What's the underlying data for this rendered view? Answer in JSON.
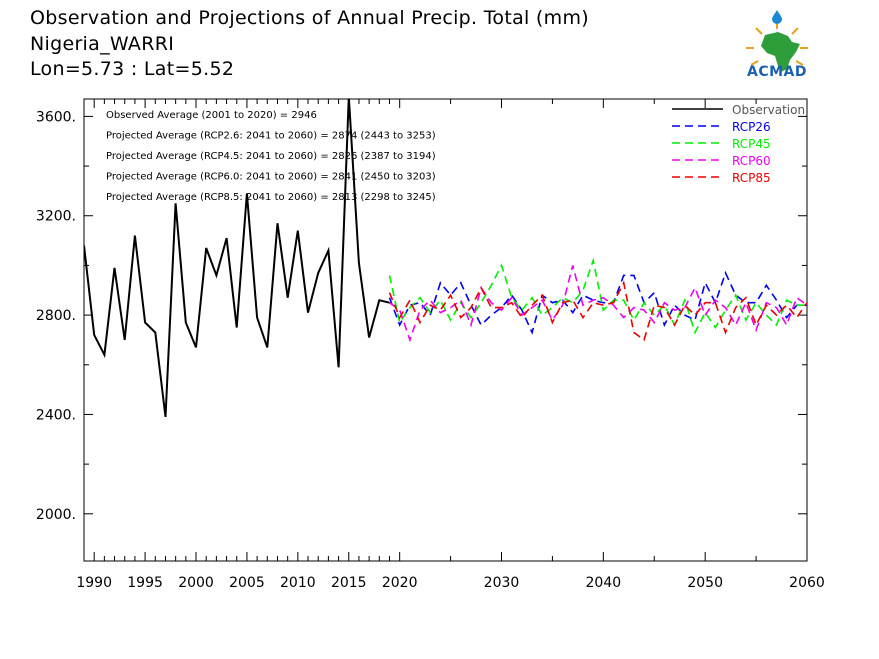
{
  "header": {
    "title": "Observation and Projections of Annual Precip. Total (mm)",
    "station": "Nigeria_WARRI",
    "coords": "Lon=5.73 : Lat=5.52"
  },
  "logo": {
    "text": "ACMAD"
  },
  "colors": {
    "observation": "#000000",
    "rcp26": "#0000ee",
    "rcp45": "#00ee00",
    "rcp60": "#ee00ee",
    "rcp85": "#ee0000"
  },
  "chart_data": {
    "type": "line",
    "xlim": [
      1989,
      2060
    ],
    "ylim": [
      1810,
      3670
    ],
    "x_ticks": [
      {
        "value": 1990,
        "label": "1990"
      },
      {
        "value": 1995,
        "label": "1995"
      },
      {
        "value": 2000,
        "label": "2000"
      },
      {
        "value": 2005,
        "label": "2005"
      },
      {
        "value": 2010,
        "label": "2010"
      },
      {
        "value": 2015,
        "label": "2015"
      },
      {
        "value": 2020,
        "label": "2020"
      },
      {
        "value": 2030,
        "label": "2030"
      },
      {
        "value": 2040,
        "label": "2040"
      },
      {
        "value": 2050,
        "label": "2050"
      },
      {
        "value": 2060,
        "label": "2060"
      }
    ],
    "y_ticks": [
      {
        "value": 2000,
        "label": "2000."
      },
      {
        "value": 2400,
        "label": "2400."
      },
      {
        "value": 2800,
        "label": "2800."
      },
      {
        "value": 3200,
        "label": "3200."
      },
      {
        "value": 3600,
        "label": "3600."
      }
    ],
    "annotations": [
      "Observed Average (2001 to 2020) = 2946",
      "Projected Average (RCP2.6: 2041 to 2060) = 2874 (2443 to 3253)",
      "Projected Average (RCP4.5: 2041 to 2060) = 2826 (2387 to 3194)",
      "Projected Average (RCP6.0: 2041 to 2060) = 2841 (2450 to 3203)",
      "Projected Average (RCP8.5: 2041 to 2060) = 2813 (2298 to 3245)"
    ],
    "legend_position": "top-right",
    "series": [
      {
        "name": "Observation",
        "key": "observation",
        "dash": "none",
        "x": [
          1989,
          1990,
          1991,
          1992,
          1993,
          1994,
          1995,
          1996,
          1997,
          1998,
          1999,
          2000,
          2001,
          2002,
          2003,
          2004,
          2005,
          2006,
          2007,
          2008,
          2009,
          2010,
          2011,
          2012,
          2013,
          2014,
          2015,
          2016,
          2017,
          2018,
          2019
        ],
        "y": [
          3080,
          2720,
          2640,
          2990,
          2700,
          3120,
          2770,
          2730,
          2390,
          3250,
          2770,
          2670,
          3070,
          2960,
          3110,
          2750,
          3290,
          2790,
          2670,
          3170,
          2870,
          3140,
          2810,
          2970,
          3060,
          2590,
          3680,
          3010,
          2710,
          2860,
          2850
        ]
      },
      {
        "name": "RCP26",
        "key": "rcp26",
        "dash": "8,5",
        "x": [
          2019,
          2020,
          2021,
          2022,
          2023,
          2024,
          2025,
          2026,
          2027,
          2028,
          2029,
          2030,
          2031,
          2032,
          2033,
          2034,
          2035,
          2036,
          2037,
          2038,
          2039,
          2040,
          2041,
          2042,
          2043,
          2044,
          2045,
          2046,
          2047,
          2048,
          2049,
          2050,
          2051,
          2052,
          2053,
          2054,
          2055,
          2056,
          2057,
          2058,
          2059,
          2060
        ],
        "y": [
          2870,
          2760,
          2840,
          2850,
          2800,
          2930,
          2880,
          2930,
          2840,
          2760,
          2800,
          2830,
          2880,
          2820,
          2730,
          2880,
          2850,
          2860,
          2810,
          2880,
          2860,
          2850,
          2850,
          2960,
          2960,
          2850,
          2890,
          2760,
          2840,
          2800,
          2780,
          2930,
          2850,
          2970,
          2880,
          2850,
          2850,
          2920,
          2860,
          2790,
          2840,
          2840
        ]
      },
      {
        "name": "RCP45",
        "key": "rcp45",
        "dash": "8,5",
        "x": [
          2019,
          2020,
          2021,
          2022,
          2023,
          2024,
          2025,
          2026,
          2027,
          2028,
          2029,
          2030,
          2031,
          2032,
          2033,
          2034,
          2035,
          2036,
          2037,
          2038,
          2039,
          2040,
          2041,
          2042,
          2043,
          2044,
          2045,
          2046,
          2047,
          2048,
          2049,
          2050,
          2051,
          2052,
          2053,
          2054,
          2055,
          2056,
          2057,
          2058,
          2059,
          2060
        ],
        "y": [
          2960,
          2770,
          2830,
          2870,
          2810,
          2860,
          2780,
          2850,
          2790,
          2850,
          2920,
          3000,
          2870,
          2820,
          2870,
          2800,
          2830,
          2870,
          2850,
          2900,
          3020,
          2820,
          2860,
          2860,
          2780,
          2850,
          2800,
          2840,
          2760,
          2860,
          2730,
          2810,
          2750,
          2820,
          2880,
          2780,
          2850,
          2800,
          2760,
          2860,
          2840,
          2840
        ]
      },
      {
        "name": "RCP60",
        "key": "rcp60",
        "dash": "8,5",
        "x": [
          2019,
          2020,
          2021,
          2022,
          2023,
          2024,
          2025,
          2026,
          2027,
          2028,
          2029,
          2030,
          2031,
          2032,
          2033,
          2034,
          2035,
          2036,
          2037,
          2038,
          2039,
          2040,
          2041,
          2042,
          2043,
          2044,
          2045,
          2046,
          2047,
          2048,
          2049,
          2050,
          2051,
          2052,
          2053,
          2054,
          2055,
          2056,
          2057,
          2058,
          2059,
          2060
        ],
        "y": [
          2850,
          2820,
          2700,
          2820,
          2860,
          2810,
          2830,
          2860,
          2760,
          2910,
          2850,
          2820,
          2870,
          2800,
          2830,
          2860,
          2780,
          2840,
          3000,
          2840,
          2860,
          2870,
          2840,
          2790,
          2830,
          2820,
          2770,
          2850,
          2820,
          2830,
          2910,
          2800,
          2860,
          2830,
          2760,
          2850,
          2740,
          2850,
          2830,
          2760,
          2870,
          2840
        ]
      },
      {
        "name": "RCP85",
        "key": "rcp85",
        "dash": "8,5",
        "x": [
          2019,
          2020,
          2021,
          2022,
          2023,
          2024,
          2025,
          2026,
          2027,
          2028,
          2029,
          2030,
          2031,
          2032,
          2033,
          2034,
          2035,
          2036,
          2037,
          2038,
          2039,
          2040,
          2041,
          2042,
          2043,
          2044,
          2045,
          2046,
          2047,
          2048,
          2049,
          2050,
          2051,
          2052,
          2053,
          2054,
          2055,
          2056,
          2057,
          2058,
          2059,
          2060
        ],
        "y": [
          2890,
          2790,
          2860,
          2770,
          2840,
          2820,
          2880,
          2790,
          2830,
          2910,
          2830,
          2830,
          2850,
          2790,
          2840,
          2880,
          2770,
          2850,
          2860,
          2790,
          2850,
          2840,
          2850,
          2930,
          2730,
          2700,
          2840,
          2830,
          2760,
          2840,
          2800,
          2850,
          2850,
          2730,
          2830,
          2870,
          2760,
          2840,
          2800,
          2840,
          2790,
          2850
        ]
      }
    ]
  }
}
